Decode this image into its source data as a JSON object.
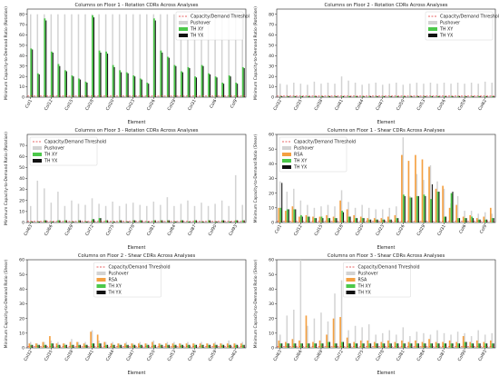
{
  "chart_data": [
    {
      "type": "bar",
      "title": "Columns on Floor 1 - Rotation CDRs Across Analyses",
      "xlabel": "Element",
      "ylabel": "Minimum Capacity-to-Demand Ratio (Rotation)",
      "ylim": [
        0,
        85
      ],
      "yticks": [
        0,
        10,
        20,
        30,
        40,
        50,
        60,
        70,
        80
      ],
      "tick_labels": [
        "Col1",
        "Col12",
        "Col15",
        "Col18",
        "Col20",
        "Col23",
        "Col26",
        "Col29",
        "Col31",
        "Col6",
        "Col9"
      ],
      "tick_positions": [
        0,
        3,
        6,
        9,
        12,
        15,
        18,
        21,
        24,
        27,
        30
      ],
      "legend": [
        "Capacity/Demand Threshold",
        "Pushover",
        "TH XY",
        "TH YX"
      ],
      "legend_position": "top-right",
      "threshold": 1,
      "series": [
        {
          "name": "Pushover",
          "values": [
            80,
            80,
            80,
            80,
            80,
            80,
            80,
            80,
            80,
            80,
            80,
            80,
            80,
            80,
            80,
            80,
            80,
            80,
            80,
            80,
            80,
            80,
            80,
            80,
            80,
            80,
            80,
            80,
            80,
            80,
            80,
            80
          ]
        },
        {
          "name": "TH XY",
          "values": [
            47,
            23,
            76,
            44,
            32,
            26,
            21,
            18,
            15,
            79,
            45,
            44,
            31,
            26,
            24,
            21,
            18,
            14,
            76,
            45,
            39,
            31,
            25,
            29,
            20,
            31,
            23,
            20,
            14,
            21,
            14,
            29
          ]
        },
        {
          "name": "TH YX",
          "values": [
            46,
            22,
            74,
            43,
            30,
            25,
            20,
            17,
            14,
            77,
            43,
            42,
            29,
            24,
            23,
            20,
            17,
            13,
            74,
            43,
            38,
            30,
            24,
            28,
            19,
            30,
            22,
            19,
            13,
            20,
            13,
            28
          ]
        }
      ]
    },
    {
      "type": "bar",
      "title": "Columns on Floor 2 - Rotation CDRs Across Analyses",
      "xlabel": "Element",
      "ylabel": "Minimum Capacity-to-Demand Ratio (Rotation)",
      "ylim": [
        0,
        85
      ],
      "yticks": [
        0,
        10,
        20,
        30,
        40,
        50,
        60,
        70,
        80
      ],
      "tick_labels": [
        "Col32",
        "Col35",
        "Col38",
        "Col41",
        "Col44",
        "Col47",
        "Col50",
        "Col53",
        "Col56",
        "Col59",
        "Col62"
      ],
      "tick_positions": [
        0,
        3,
        6,
        9,
        12,
        15,
        18,
        21,
        24,
        27,
        30
      ],
      "legend": [
        "Capacity/Demand Threshold",
        "Pushover",
        "TH XY",
        "TH YX"
      ],
      "legend_position": "top-right",
      "threshold": 1,
      "series": [
        {
          "name": "Pushover",
          "values": [
            13,
            12,
            14,
            13,
            12,
            15,
            13,
            14,
            13,
            20,
            16,
            14,
            12,
            13,
            14,
            12,
            13,
            14,
            12,
            13,
            14,
            13,
            14,
            13,
            14,
            13,
            14,
            13,
            14,
            13,
            15,
            14
          ]
        },
        {
          "name": "TH XY",
          "values": [
            1,
            1,
            1,
            1,
            1,
            1,
            1,
            1,
            1,
            1,
            1,
            1,
            1,
            1,
            1,
            1,
            1,
            1,
            1,
            1,
            1,
            1,
            1,
            1,
            1,
            1,
            1,
            1,
            1,
            1,
            1,
            1
          ]
        },
        {
          "name": "TH YX",
          "values": [
            1,
            1,
            1,
            1,
            1,
            1,
            1,
            1,
            1,
            1,
            1,
            1,
            1,
            1,
            1,
            1,
            1,
            1,
            1,
            1,
            1,
            1,
            1,
            1,
            1,
            1,
            1,
            1,
            1,
            1,
            1,
            1
          ]
        }
      ]
    },
    {
      "type": "bar",
      "title": "Columns on Floor 3 - Rotation CDRs Across Analyses",
      "xlabel": "Element",
      "ylabel": "Minimum Capacity-to-Demand Ratio (Rotation)",
      "ylim": [
        0,
        80
      ],
      "yticks": [
        0,
        10,
        20,
        30,
        40,
        50,
        60,
        70
      ],
      "tick_labels": [
        "Col63",
        "Col66",
        "Col69",
        "Col72",
        "Col75",
        "Col78",
        "Col81",
        "Col84",
        "Col87",
        "Col90",
        "Col93"
      ],
      "tick_positions": [
        0,
        3,
        6,
        9,
        12,
        15,
        18,
        21,
        24,
        27,
        30
      ],
      "legend": [
        "Capacity/Demand Threshold",
        "Pushover",
        "TH XY",
        "TH YX"
      ],
      "legend_position": "top-left",
      "threshold": 1,
      "series": [
        {
          "name": "Pushover",
          "values": [
            15,
            38,
            31,
            18,
            28,
            15,
            20,
            17,
            16,
            22,
            17,
            15,
            19,
            15,
            17,
            18,
            16,
            15,
            19,
            16,
            23,
            15,
            17,
            20,
            15,
            18,
            15,
            17,
            20,
            15,
            43,
            16
          ]
        },
        {
          "name": "TH XY",
          "values": [
            1,
            1,
            2,
            1,
            2,
            2,
            1,
            2,
            1,
            3,
            4,
            2,
            1,
            2,
            1,
            2,
            2,
            1,
            2,
            2,
            2,
            1,
            2,
            1,
            2,
            1,
            2,
            1,
            2,
            1,
            2,
            2
          ]
        },
        {
          "name": "TH YX",
          "values": [
            1,
            1,
            2,
            1,
            2,
            2,
            1,
            2,
            1,
            3,
            4,
            2,
            1,
            2,
            1,
            2,
            2,
            1,
            2,
            2,
            2,
            1,
            2,
            1,
            2,
            1,
            2,
            1,
            2,
            1,
            2,
            2
          ]
        }
      ]
    },
    {
      "type": "bar",
      "title": "Columns on Floor 1 - Shear CDRs Across Analyses",
      "xlabel": "Element",
      "ylabel": "Minimum Capacity-to-Demand Ratio (Shear)",
      "ylim": [
        0,
        60
      ],
      "yticks": [
        0,
        10,
        20,
        30,
        40,
        50,
        60
      ],
      "tick_labels": [
        "Col1",
        "Col12",
        "Col15",
        "Col18",
        "Col20",
        "Col23",
        "Col26",
        "Col29",
        "Col31",
        "Col6",
        "Col9"
      ],
      "tick_positions": [
        0,
        3,
        6,
        9,
        12,
        15,
        18,
        21,
        24,
        27,
        30
      ],
      "legend": [
        "Capacity/Demand Threshold",
        "Pushover",
        "RSA",
        "TH XY",
        "TH YX"
      ],
      "legend_position": "top-left",
      "threshold": 1,
      "series": [
        {
          "name": "Pushover",
          "values": [
            28,
            21,
            23,
            15,
            12,
            10,
            11,
            12,
            11,
            22,
            14,
            10,
            12,
            10,
            9,
            9,
            10,
            11,
            58,
            18,
            33,
            29,
            39,
            28,
            23,
            13,
            18,
            8,
            8,
            6,
            7,
            6
          ]
        },
        {
          "name": "RSA",
          "values": [
            10,
            8,
            11,
            4,
            5,
            4,
            4,
            5,
            4,
            15,
            9,
            5,
            4,
            3,
            3,
            3,
            4,
            5,
            46,
            42,
            46,
            43,
            38,
            23,
            25,
            10,
            12,
            4,
            5,
            3,
            4,
            10
          ]
        },
        {
          "name": "TH XY",
          "values": [
            10,
            9,
            9,
            5,
            4,
            3,
            4,
            3,
            3,
            8,
            4,
            3,
            3,
            2,
            2,
            2,
            2,
            3,
            19,
            17,
            18,
            19,
            16,
            21,
            4,
            20,
            3,
            3,
            4,
            2,
            2,
            3
          ]
        },
        {
          "name": "TH YX",
          "values": [
            27,
            9,
            9,
            4,
            4,
            3,
            3,
            3,
            3,
            7,
            4,
            3,
            3,
            2,
            2,
            2,
            2,
            3,
            18,
            17,
            18,
            18,
            26,
            21,
            4,
            21,
            3,
            3,
            3,
            2,
            2,
            3
          ]
        }
      ]
    },
    {
      "type": "bar",
      "title": "Columns on Floor 2 - Shear CDRs Across Analyses",
      "xlabel": "Element",
      "ylabel": "Minimum Capacity-to-Demand Ratio (Shear)",
      "ylim": [
        0,
        60
      ],
      "yticks": [
        0,
        10,
        20,
        30,
        40,
        50,
        60
      ],
      "tick_labels": [
        "Col32",
        "Col35",
        "Col38",
        "Col41",
        "Col44",
        "Col47",
        "Col50",
        "Col53",
        "Col56",
        "Col59",
        "Col62"
      ],
      "tick_positions": [
        0,
        3,
        6,
        9,
        12,
        15,
        18,
        21,
        24,
        27,
        30
      ],
      "legend": [
        "Capacity/Demand Threshold",
        "Pushover",
        "RSA",
        "TH XY",
        "TH YX"
      ],
      "legend_position": "top-center",
      "threshold": 1,
      "series": [
        {
          "name": "Pushover",
          "values": [
            4,
            3,
            4,
            5,
            4,
            3,
            6,
            4,
            4,
            12,
            5,
            4,
            4,
            3,
            4,
            3,
            4,
            3,
            5,
            3,
            4,
            4,
            3,
            4,
            3,
            4,
            3,
            4,
            3,
            5,
            3,
            4
          ]
        },
        {
          "name": "RSA",
          "values": [
            3,
            3,
            4,
            8,
            3,
            3,
            4,
            4,
            3,
            11,
            9,
            4,
            3,
            3,
            3,
            3,
            3,
            3,
            4,
            3,
            3,
            3,
            3,
            3,
            3,
            3,
            3,
            3,
            3,
            3,
            3,
            3
          ]
        },
        {
          "name": "TH XY",
          "values": [
            2,
            2,
            2,
            3,
            2,
            2,
            2,
            2,
            2,
            3,
            3,
            2,
            2,
            2,
            2,
            2,
            2,
            2,
            2,
            2,
            2,
            2,
            2,
            2,
            2,
            2,
            2,
            2,
            2,
            2,
            2,
            2
          ]
        },
        {
          "name": "TH YX",
          "values": [
            2,
            2,
            2,
            3,
            2,
            2,
            2,
            2,
            2,
            3,
            3,
            2,
            2,
            2,
            2,
            2,
            2,
            2,
            2,
            2,
            2,
            2,
            2,
            2,
            2,
            2,
            2,
            2,
            2,
            2,
            2,
            2
          ]
        }
      ]
    },
    {
      "type": "bar",
      "title": "Columns on Floor 3 - Shear CDRs Across Analyses",
      "xlabel": "Element",
      "ylabel": "Minimum Capacity-to-Demand Ratio (Shear)",
      "ylim": [
        0,
        60
      ],
      "yticks": [
        0,
        10,
        20,
        30,
        40,
        50,
        60
      ],
      "tick_labels": [
        "Col63",
        "Col66",
        "Col69",
        "Col72",
        "Col75",
        "Col78",
        "Col81",
        "Col84",
        "Col87",
        "Col90",
        "Col93"
      ],
      "tick_positions": [
        0,
        3,
        6,
        9,
        12,
        15,
        18,
        21,
        24,
        27,
        30
      ],
      "legend": [
        "Capacity/Demand Threshold",
        "Pushover",
        "RSA",
        "TH XY",
        "TH YX"
      ],
      "legend_position": "top-center",
      "threshold": 1,
      "series": [
        {
          "name": "Pushover",
          "values": [
            9,
            22,
            26,
            60,
            15,
            20,
            24,
            18,
            37,
            46,
            12,
            15,
            14,
            16,
            9,
            10,
            12,
            9,
            14,
            8,
            11,
            10,
            9,
            12,
            10,
            9,
            11,
            10,
            8,
            12,
            9,
            10
          ]
        },
        {
          "name": "RSA",
          "values": [
            5,
            4,
            6,
            5,
            22,
            4,
            5,
            9,
            20,
            21,
            7,
            4,
            5,
            5,
            4,
            4,
            5,
            4,
            5,
            4,
            5,
            4,
            6,
            4,
            4,
            5,
            4,
            8,
            4,
            5,
            4,
            5
          ]
        },
        {
          "name": "TH XY",
          "values": [
            3,
            3,
            3,
            3,
            3,
            3,
            3,
            4,
            3,
            4,
            3,
            3,
            3,
            3,
            3,
            3,
            3,
            3,
            3,
            3,
            3,
            3,
            3,
            3,
            3,
            3,
            3,
            4,
            3,
            3,
            3,
            3
          ]
        },
        {
          "name": "TH YX",
          "values": [
            3,
            3,
            3,
            3,
            3,
            3,
            3,
            4,
            3,
            4,
            3,
            3,
            3,
            3,
            3,
            3,
            3,
            3,
            3,
            3,
            3,
            3,
            3,
            3,
            3,
            3,
            3,
            4,
            3,
            3,
            3,
            3
          ]
        }
      ]
    }
  ],
  "colors": {
    "Pushover": "#d3d3d3",
    "RSA": "#f4a041",
    "TH XY": "#4cc84a",
    "TH YX": "#111111",
    "threshold": "#e03030"
  }
}
